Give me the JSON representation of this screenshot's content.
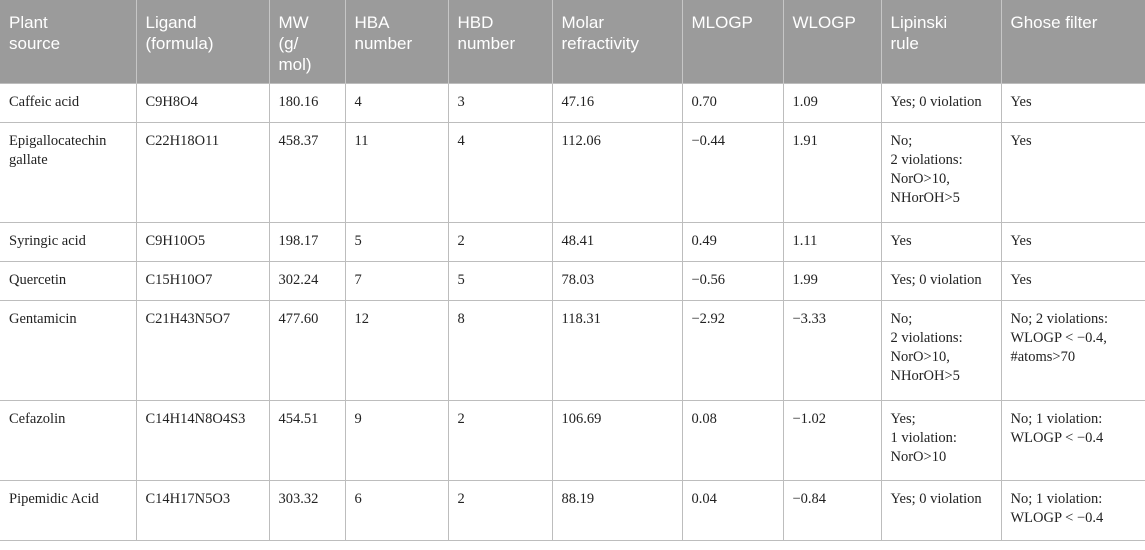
{
  "header": {
    "plant_source": "Plant\nsource",
    "ligand": "Ligand\n(formula)",
    "mw": "MW\n(g/\nmol)",
    "hba": "HBA\nnumber",
    "hbd": "HBD\nnumber",
    "molar_refractivity": "Molar\nrefractivity",
    "mlogp": "MLOGP",
    "wlogp": "WLOGP",
    "lipinski": "Lipinski\nrule",
    "ghose": "Ghose filter"
  },
  "rows": [
    {
      "plant_source": "Caffeic acid",
      "ligand": "C9H8O4",
      "mw": "180.16",
      "hba": "4",
      "hbd": "3",
      "molar_refractivity": "47.16",
      "mlogp": "0.70",
      "wlogp": "1.09",
      "lipinski": "Yes; 0 violation",
      "ghose": "Yes"
    },
    {
      "plant_source": "Epigallocatechin\ngallate",
      "ligand": "C22H18O11",
      "mw": "458.37",
      "hba": "11",
      "hbd": "4",
      "molar_refractivity": "112.06",
      "mlogp": "−0.44",
      "wlogp": "1.91",
      "lipinski": "No;\n2 violations:\nNorO>10,\nNHorOH>5",
      "ghose": "Yes"
    },
    {
      "plant_source": "Syringic acid",
      "ligand": "C9H10O5",
      "mw": "198.17",
      "hba": "5",
      "hbd": "2",
      "molar_refractivity": "48.41",
      "mlogp": "0.49",
      "wlogp": "1.11",
      "lipinski": "Yes",
      "ghose": "Yes"
    },
    {
      "plant_source": "Quercetin",
      "ligand": "C15H10O7",
      "mw": "302.24",
      "hba": "7",
      "hbd": "5",
      "molar_refractivity": "78.03",
      "mlogp": "−0.56",
      "wlogp": "1.99",
      "lipinski": "Yes; 0 violation",
      "ghose": "Yes"
    },
    {
      "plant_source": "Gentamicin",
      "ligand": "C21H43N5O7",
      "mw": "477.60",
      "hba": "12",
      "hbd": "8",
      "molar_refractivity": "118.31",
      "mlogp": "−2.92",
      "wlogp": "−3.33",
      "lipinski": "No;\n2 violations:\nNorO>10,\nNHorOH>5",
      "ghose": "No; 2 violations:\nWLOGP < −0.4,\n#atoms>70"
    },
    {
      "plant_source": "Cefazolin",
      "ligand": "C14H14N8O4S3",
      "mw": "454.51",
      "hba": "9",
      "hbd": "2",
      "molar_refractivity": "106.69",
      "mlogp": "0.08",
      "wlogp": "−1.02",
      "lipinski": "Yes;\n1 violation:\nNorO>10",
      "ghose": "No; 1 violation:\nWLOGP < −0.4"
    },
    {
      "plant_source": "Pipemidic Acid",
      "ligand": "C14H17N5O3",
      "mw": "303.32",
      "hba": "6",
      "hbd": "2",
      "molar_refractivity": "88.19",
      "mlogp": "0.04",
      "wlogp": "−0.84",
      "lipinski": "Yes; 0 violation",
      "ghose": "No; 1 violation:\nWLOGP < −0.4"
    }
  ]
}
